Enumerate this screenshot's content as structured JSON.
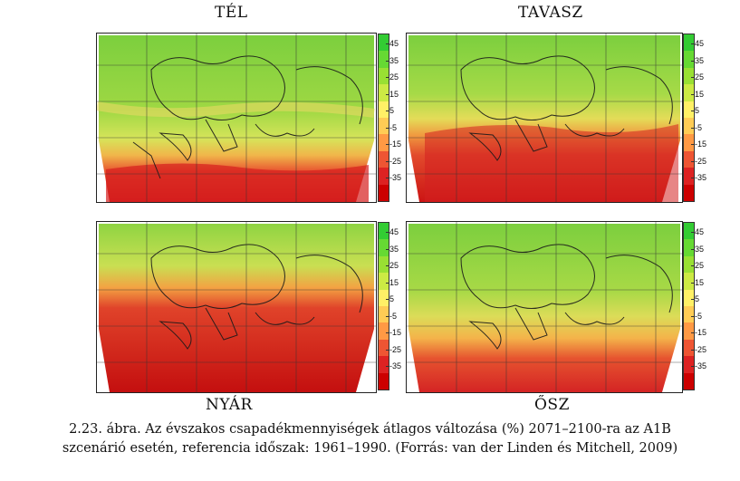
{
  "panels": [
    {
      "id": "tel",
      "title": "TÉL"
    },
    {
      "id": "tavasz",
      "title": "TAVASZ"
    },
    {
      "id": "nyar",
      "title": "NYÁR"
    },
    {
      "id": "osz",
      "title": "ŐSZ"
    }
  ],
  "colorbar": {
    "ticks": [
      "45",
      "35",
      "25",
      "15",
      "5",
      "-5",
      "-15",
      "-25",
      "-35"
    ],
    "colors": {
      "high": "#33cc33",
      "mid": "#ffff66",
      "low": "#cc0000"
    }
  },
  "caption": {
    "line1": "2.23. ábra. Az évszakos csapadékmennyiségek átlagos változása (%) 2071–2100-ra az A1B",
    "line2": "szcenárió esetén, referencia időszak: 1961–1990. (Forrás: van der Linden és Mitchell, 2009)"
  }
}
